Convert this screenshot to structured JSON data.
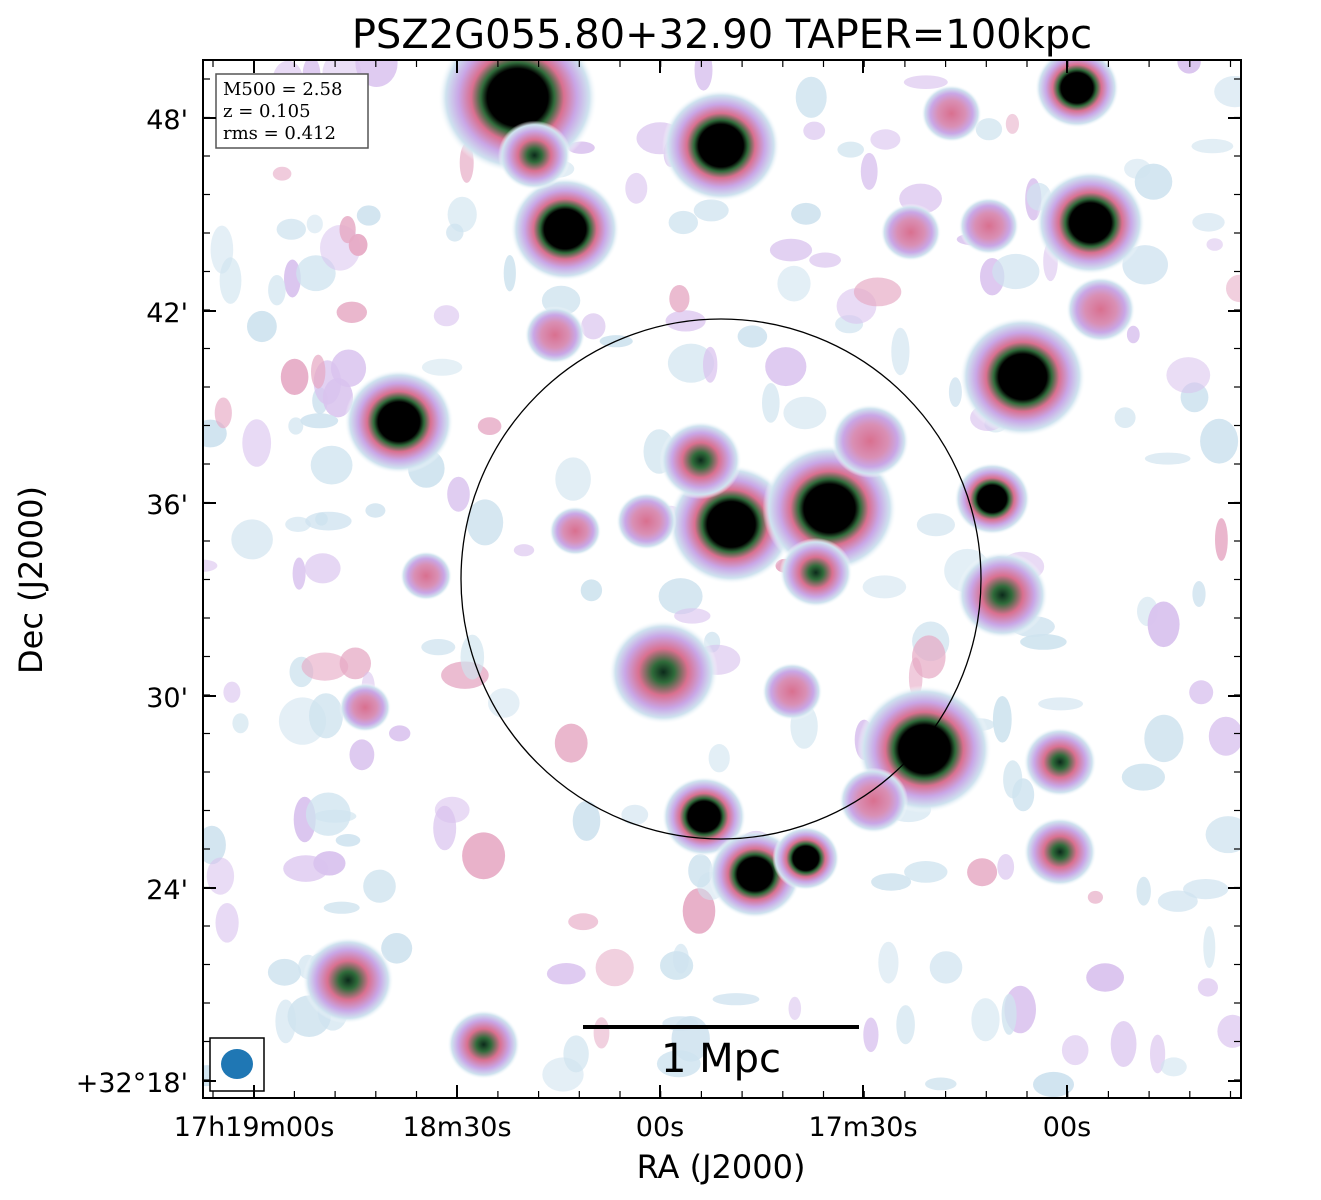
{
  "title": "PSZ2G055.80+32.90 TAPER=100kpc",
  "info_box": {
    "m500": "M500 = 2.58",
    "z": "z = 0.105",
    "rms": "rms = 0.412"
  },
  "scale_bar": {
    "label": "1 Mpc"
  },
  "axes": {
    "xlabel": "RA (J2000)",
    "ylabel": "Dec (J2000)",
    "x_tick_labels": [
      "17h19m00s",
      "18m30s",
      "00s",
      "17m30s",
      "00s"
    ],
    "y_tick_labels": [
      "48'",
      "42'",
      "36'",
      "30'",
      "24'",
      "+32°18'"
    ]
  },
  "colors": {
    "halo": "#cfe3ef",
    "mid": "#c9a6e6",
    "pink": "#d9708f",
    "green": "#2f6b3a",
    "core": "#000000",
    "beam": "#1f77b4"
  },
  "sources": [
    {
      "name": "top-left-bright",
      "ra_off": -6.0,
      "dec_off": 48.5,
      "size": 1.9,
      "level": 4
    },
    {
      "name": "top-center-bright",
      "ra_off": 0.0,
      "dec_off": 47.0,
      "size": 1.4,
      "level": 4
    },
    {
      "name": "top-right-bright",
      "ra_off": 10.5,
      "dec_off": 48.8,
      "size": 1.0,
      "level": 4
    },
    {
      "name": "upper-left-bright",
      "ra_off": -4.6,
      "dec_off": 44.4,
      "size": 1.3,
      "level": 4
    },
    {
      "name": "upper-right-bright",
      "ra_off": 10.9,
      "dec_off": 44.6,
      "size": 1.3,
      "level": 4
    },
    {
      "name": "right-bright",
      "ra_off": 8.9,
      "dec_off": 39.8,
      "size": 1.5,
      "level": 4
    },
    {
      "name": "left-bright",
      "ra_off": -9.5,
      "dec_off": 38.4,
      "size": 1.3,
      "level": 4
    },
    {
      "name": "center-bright-1",
      "ra_off": 0.3,
      "dec_off": 35.2,
      "size": 1.5,
      "level": 4
    },
    {
      "name": "center-bright-2",
      "ra_off": 3.2,
      "dec_off": 35.7,
      "size": 1.6,
      "level": 4
    },
    {
      "name": "center-right-bright",
      "ra_off": 8.0,
      "dec_off": 36.0,
      "size": 0.9,
      "level": 4
    },
    {
      "name": "lower-right-bright",
      "ra_off": 6.0,
      "dec_off": 28.2,
      "size": 1.6,
      "level": 4
    },
    {
      "name": "bottom-cluster-1",
      "ra_off": -0.5,
      "dec_off": 26.1,
      "size": 1.0,
      "level": 4
    },
    {
      "name": "bottom-cluster-2",
      "ra_off": 1.0,
      "dec_off": 24.3,
      "size": 1.1,
      "level": 4
    },
    {
      "name": "bottom-cluster-3",
      "ra_off": 2.5,
      "dec_off": 24.8,
      "size": 0.8,
      "level": 4
    },
    {
      "name": "mid-source-1",
      "ra_off": -0.6,
      "dec_off": 37.2,
      "size": 0.9,
      "level": 3
    },
    {
      "name": "mid-source-2",
      "ra_off": 2.8,
      "dec_off": 33.7,
      "size": 0.8,
      "level": 3
    },
    {
      "name": "mid-source-3",
      "ra_off": -1.7,
      "dec_off": 30.6,
      "size": 1.2,
      "level": 3
    },
    {
      "name": "mid-source-4",
      "ra_off": 4.4,
      "dec_off": 37.8,
      "size": 0.9,
      "level": 2
    },
    {
      "name": "right-source-1",
      "ra_off": 8.3,
      "dec_off": 33.0,
      "size": 1.0,
      "level": 3
    },
    {
      "name": "right-source-2",
      "ra_off": 10.0,
      "dec_off": 27.8,
      "size": 0.8,
      "level": 3
    },
    {
      "name": "right-source-3",
      "ra_off": 10.0,
      "dec_off": 25.0,
      "size": 0.8,
      "level": 3
    },
    {
      "name": "upper-source-1",
      "ra_off": -5.5,
      "dec_off": 46.7,
      "size": 0.8,
      "level": 3
    },
    {
      "name": "upper-source-2",
      "ra_off": 5.6,
      "dec_off": 44.3,
      "size": 0.7,
      "level": 2
    },
    {
      "name": "upper-source-3",
      "ra_off": 7.9,
      "dec_off": 44.5,
      "size": 0.7,
      "level": 2
    },
    {
      "name": "upper-source-4",
      "ra_off": 11.2,
      "dec_off": 41.9,
      "size": 0.8,
      "level": 2
    },
    {
      "name": "upper-source-5",
      "ra_off": 6.8,
      "dec_off": 48.0,
      "size": 0.7,
      "level": 2
    },
    {
      "name": "left-source-1",
      "ra_off": -4.9,
      "dec_off": 41.1,
      "size": 0.7,
      "level": 2
    },
    {
      "name": "left-source-2",
      "ra_off": -4.3,
      "dec_off": 35.0,
      "size": 0.6,
      "level": 2
    },
    {
      "name": "left-source-3",
      "ra_off": -2.2,
      "dec_off": 35.3,
      "size": 0.7,
      "level": 2
    },
    {
      "name": "left-source-4",
      "ra_off": -8.7,
      "dec_off": 33.6,
      "size": 0.6,
      "level": 2
    },
    {
      "name": "far-left-1",
      "ra_off": -11.0,
      "dec_off": 21.0,
      "size": 1.0,
      "level": 3
    },
    {
      "name": "far-left-2",
      "ra_off": -7.0,
      "dec_off": 19.0,
      "size": 0.8,
      "level": 3
    },
    {
      "name": "lower-left-1",
      "ra_off": -10.5,
      "dec_off": 29.5,
      "size": 0.6,
      "level": 2
    },
    {
      "name": "lower-center-1",
      "ra_off": 2.1,
      "dec_off": 30.0,
      "size": 0.7,
      "level": 2
    },
    {
      "name": "lower-center-2",
      "ra_off": 4.5,
      "dec_off": 26.6,
      "size": 0.8,
      "level": 2
    }
  ]
}
